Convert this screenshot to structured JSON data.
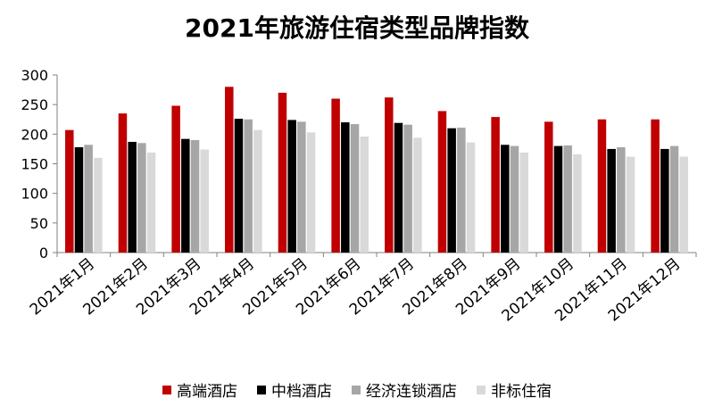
{
  "chart_data": {
    "type": "bar",
    "title": "2021年旅游住宿类型品牌指数",
    "categories": [
      "2021年1月",
      "2021年2月",
      "2021年3月",
      "2021年4月",
      "2021年5月",
      "2021年6月",
      "2021年7月",
      "2021年8月",
      "2021年9月",
      "2021年10月",
      "2021年11月",
      "2021年12月"
    ],
    "series": [
      {
        "name": "高端酒店",
        "color": "#c00000",
        "values": [
          207,
          235,
          248,
          280,
          270,
          260,
          262,
          239,
          229,
          221,
          225,
          225
        ]
      },
      {
        "name": "中档酒店",
        "color": "#000000",
        "values": [
          178,
          187,
          192,
          226,
          224,
          220,
          219,
          210,
          182,
          180,
          175,
          175
        ]
      },
      {
        "name": "经济连锁酒店",
        "color": "#a6a6a6",
        "values": [
          182,
          185,
          190,
          225,
          221,
          217,
          216,
          211,
          180,
          181,
          178,
          180
        ]
      },
      {
        "name": "非标住宿",
        "color": "#d9d9d9",
        "values": [
          160,
          169,
          174,
          207,
          203,
          196,
          194,
          186,
          169,
          166,
          162,
          162
        ]
      }
    ],
    "ylim": [
      0,
      300
    ],
    "yticks": [
      0,
      50,
      100,
      150,
      200,
      250,
      300
    ],
    "xlabel": "",
    "ylabel": "",
    "legend_position": "bottom"
  }
}
